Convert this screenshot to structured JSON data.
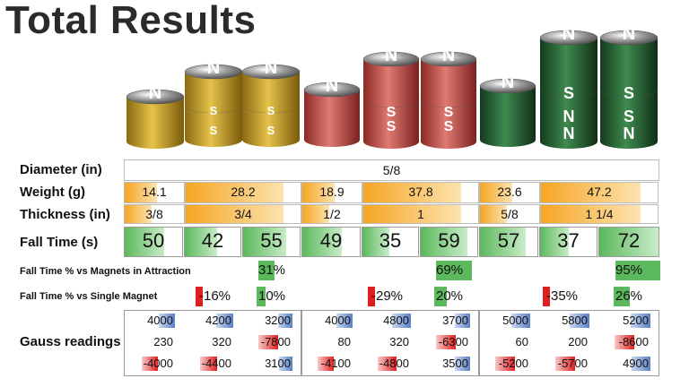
{
  "title": "Total Results",
  "magnets": {
    "north": "N",
    "south": "S",
    "colors": {
      "gold": "#d4a82a",
      "red": "#c9534a",
      "green": "#2f6e3b"
    }
  },
  "labels": {
    "diameter": "Diameter (in)",
    "weight": "Weight (g)",
    "thickness": "Thickness (in)",
    "fall_time": "Fall Time (s)",
    "fall_attraction": "Fall Time % vs Magnets in Attraction",
    "fall_single": "Fall Time % vs Single Magnet",
    "gauss": "Gauss readings"
  },
  "diameter": "5/8",
  "weights": [
    "14.1",
    "28.2",
    "18.9",
    "37.8",
    "23.6",
    "47.2"
  ],
  "thicknesses": [
    "3/8",
    "3/4",
    "1/2",
    "1",
    "5/8",
    "1 1/4"
  ],
  "fall_times": [
    {
      "value": "50",
      "level": 0.69
    },
    {
      "value": "42",
      "level": 0.58
    },
    {
      "value": "55",
      "level": 0.76
    },
    {
      "value": "49",
      "level": 0.68
    },
    {
      "value": "35",
      "level": 0.49
    },
    {
      "value": "59",
      "level": 0.82
    },
    {
      "value": "57",
      "level": 0.79
    },
    {
      "value": "37",
      "level": 0.51
    },
    {
      "value": "72",
      "level": 1.0
    }
  ],
  "attraction_pct": [
    "31%",
    "69%",
    "95%"
  ],
  "single_pct": [
    {
      "neg": "-16%",
      "pos": "10%"
    },
    {
      "neg": "-29%",
      "pos": "20%"
    },
    {
      "neg": "-35%",
      "pos": "26%"
    }
  ],
  "gauss": [
    [
      "4000",
      "230",
      "-4000"
    ],
    [
      "4200",
      "320",
      "-4400"
    ],
    [
      "3200",
      "-7800",
      "3100"
    ],
    [
      "4000",
      "80",
      "-4100"
    ],
    [
      "4800",
      "320",
      "-4800"
    ],
    [
      "3700",
      "-6300",
      "3500"
    ],
    [
      "5000",
      "60",
      "-5200"
    ],
    [
      "5800",
      "200",
      "-5700"
    ],
    [
      "5200",
      "-8600",
      "4900"
    ]
  ]
}
